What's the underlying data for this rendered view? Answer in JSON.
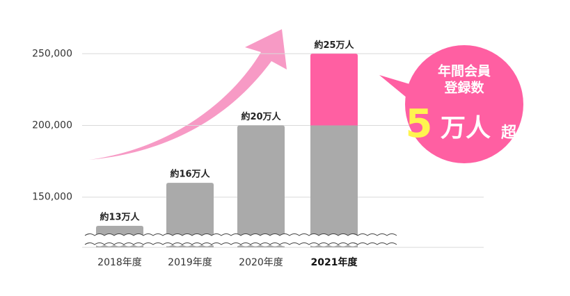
{
  "chart_data": {
    "type": "bar",
    "categories": [
      "2018年度",
      "2019年度",
      "2020年度",
      "2021年度"
    ],
    "values": [
      130000,
      160000,
      200000,
      250000
    ],
    "value_labels": [
      "約13万人",
      "約16万人",
      "約20万人",
      "約25万人"
    ],
    "color": "#aaaaaa",
    "highlight": {
      "index": 3,
      "from": 200000,
      "color": "#ff5fa2"
    },
    "ylim": [
      115000,
      270000
    ],
    "yticks": [
      {
        "value": 150000,
        "label": "150,000"
      },
      {
        "value": 200000,
        "label": "200,000"
      },
      {
        "value": 250000,
        "label": "250,000"
      }
    ],
    "grid": true,
    "callout": {
      "line1": "年間会員",
      "line2": "登録数",
      "number": "5",
      "unit": "万人",
      "suffix": "超"
    }
  }
}
